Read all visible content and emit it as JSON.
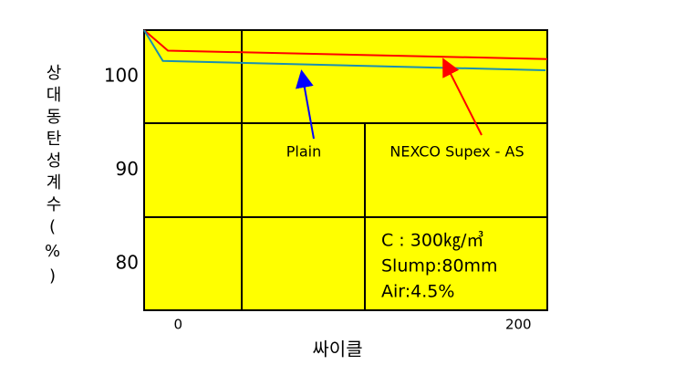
{
  "chart_data": {
    "type": "line",
    "y_label": "상대동탄성계수(%)",
    "x_label": "싸이클",
    "xlim": [
      -20,
      217
    ],
    "xticks": [
      0,
      200
    ],
    "ylim": [
      75,
      105
    ],
    "yticks": [
      80,
      90,
      100
    ],
    "series": [
      {
        "name": "NEXCO Supex - AS",
        "color": "#ff0000",
        "x": [
          -20,
          -6,
          217
        ],
        "values": [
          105,
          102.8,
          101.9
        ]
      },
      {
        "name": "Plain",
        "color": "#1a8fb0",
        "x": [
          -20,
          -9,
          216
        ],
        "values": [
          105,
          101.7,
          100.7
        ]
      }
    ],
    "annotations": [
      "C : 300㎏/㎥",
      "Slump:80mm",
      "Air:4.5%"
    ]
  }
}
